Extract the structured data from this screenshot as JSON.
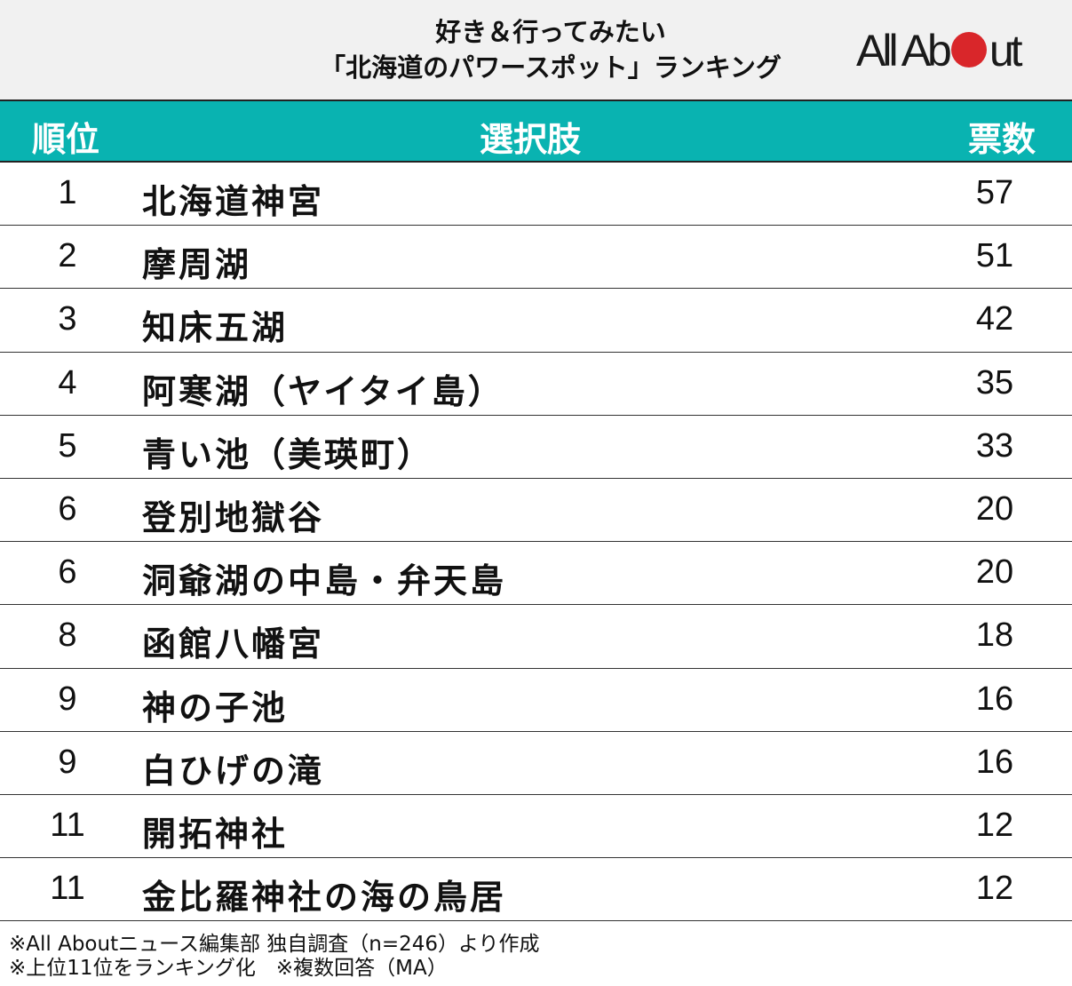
{
  "header": {
    "title_line1": "好き＆行ってみたい",
    "title_line2": "「北海道のパワースポット」ランキング",
    "logo": "All About"
  },
  "chart_data": {
    "type": "table",
    "columns": [
      "順位",
      "選択肢",
      "票数"
    ],
    "rows": [
      {
        "rank": "1",
        "name": "北海道神宮",
        "votes": "57"
      },
      {
        "rank": "2",
        "name": "摩周湖",
        "votes": "51"
      },
      {
        "rank": "3",
        "name": "知床五湖",
        "votes": "42"
      },
      {
        "rank": "4",
        "name": "阿寒湖（ヤイタイ島）",
        "votes": "35"
      },
      {
        "rank": "5",
        "name": "青い池（美瑛町）",
        "votes": "33"
      },
      {
        "rank": "6",
        "name": "登別地獄谷",
        "votes": "20"
      },
      {
        "rank": "6",
        "name": "洞爺湖の中島・弁天島",
        "votes": "20"
      },
      {
        "rank": "8",
        "name": "函館八幡宮",
        "votes": "18"
      },
      {
        "rank": "9",
        "name": "神の子池",
        "votes": "16"
      },
      {
        "rank": "9",
        "name": "白ひげの滝",
        "votes": "16"
      },
      {
        "rank": "11",
        "name": "開拓神社",
        "votes": "12"
      },
      {
        "rank": "11",
        "name": "金比羅神社の海の鳥居",
        "votes": "12"
      }
    ]
  },
  "footer": {
    "line1": "※All Aboutニュース編集部 独自調査（n=246）より作成",
    "line2": "※上位11位をランキング化　※複数回答（MA）"
  },
  "colors": {
    "header": "#09b3b1",
    "logo_dot": "#d9262a",
    "top_bg": "#f1f1f1"
  }
}
